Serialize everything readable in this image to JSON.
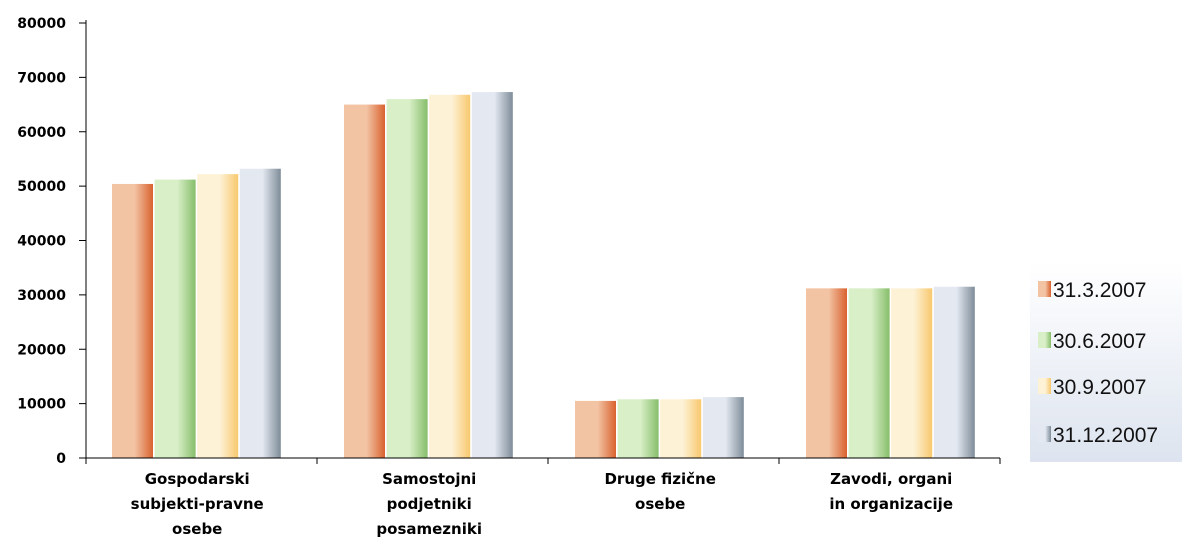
{
  "chart_data": {
    "type": "bar",
    "categories": [
      [
        "Gospodarski",
        "subjekti-pravne",
        "osebe"
      ],
      [
        "Samostojni",
        "podjetniki",
        "posamezniki"
      ],
      [
        "Druge fizične",
        "osebe"
      ],
      [
        "Zavodi, organi",
        "in organizacije"
      ]
    ],
    "series": [
      {
        "name": "31.3.2007",
        "values": [
          50400,
          65000,
          10500,
          31200
        ],
        "color_light": "#f3c4a4",
        "color_dark": "#d9622f"
      },
      {
        "name": "30.6.2007",
        "values": [
          51200,
          66000,
          10800,
          31200
        ],
        "color_light": "#d9efc8",
        "color_dark": "#86be6a"
      },
      {
        "name": "30.9.2007",
        "values": [
          52200,
          66800,
          10800,
          31200
        ],
        "color_light": "#fdf2d6",
        "color_dark": "#f8c86e"
      },
      {
        "name": "31.12.2007",
        "values": [
          53200,
          67300,
          11200,
          31500
        ],
        "color_light": "#e4e9f1",
        "color_dark": "#7e8c99"
      }
    ],
    "yticks": [
      "0",
      "10000",
      "20000",
      "30000",
      "40000",
      "50000",
      "60000",
      "70000",
      "80000"
    ],
    "ylim": [
      0,
      80000
    ],
    "xlabel": "",
    "ylabel": "",
    "title": "",
    "grid": false,
    "legend": "right"
  }
}
